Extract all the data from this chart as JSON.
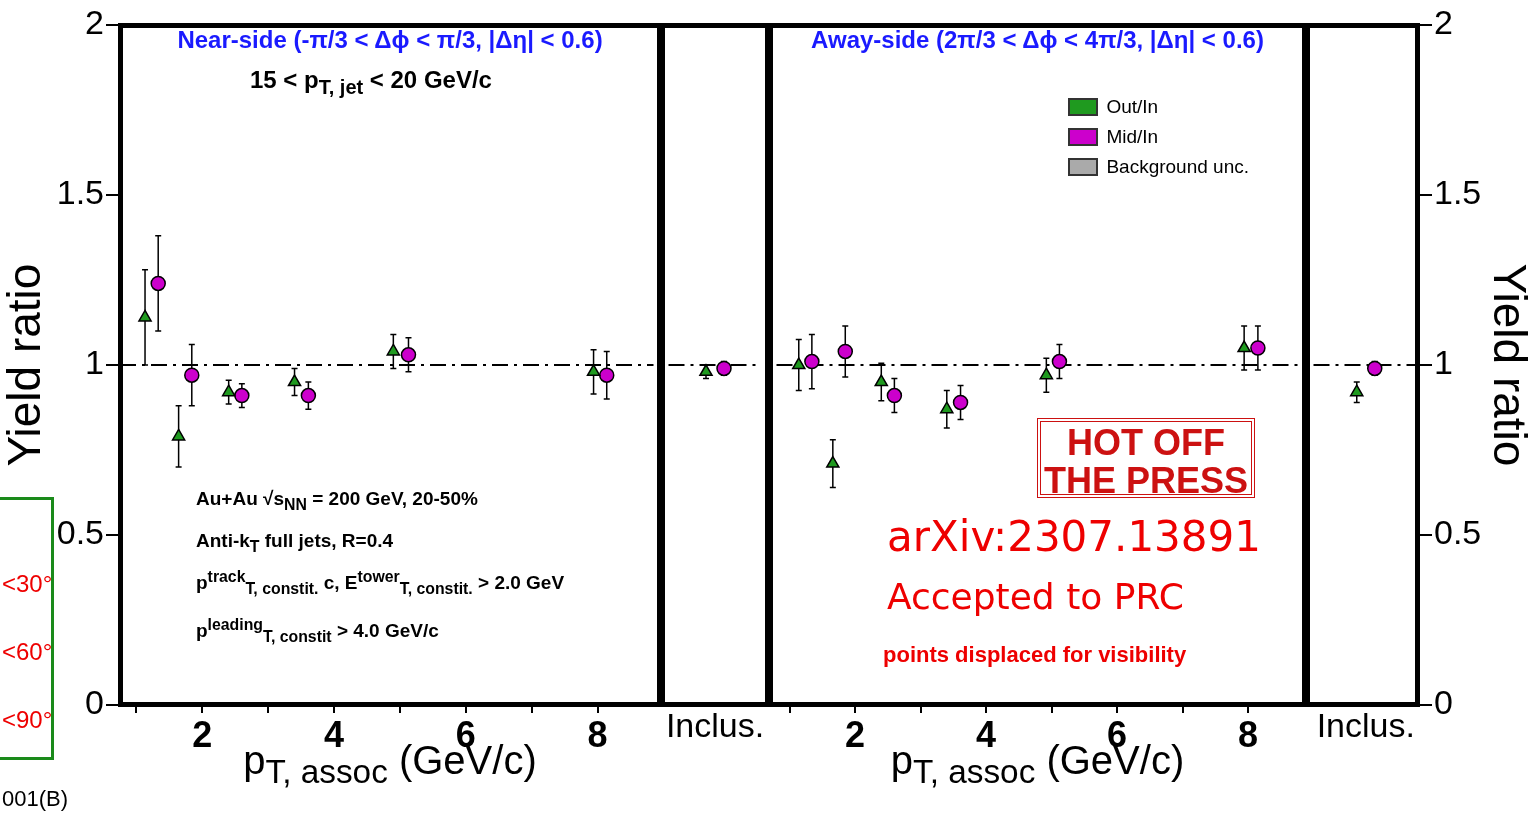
{
  "chart_data": [
    {
      "type": "scatter",
      "xlabel": "p$_{T, assoc}$ (GeV/c)",
      "ylabel": "Yield ratio",
      "xlim": [
        0.75,
        8.85
      ],
      "xticks": [
        {
          "value": 1,
          "label": null
        },
        2,
        {
          "value": 3,
          "label": null
        },
        4,
        {
          "value": 5,
          "label": null
        },
        6,
        {
          "value": 7,
          "label": null
        },
        8
      ],
      "ylim": [
        0,
        2
      ],
      "yticks": [
        0,
        0.5,
        1,
        1.5,
        2
      ],
      "ref_lines": [
        {
          "axis": "y",
          "value": 1,
          "line_style": "dashed"
        }
      ],
      "annotations": [
        "Near-side (-π/3 < Δϕ < π/3, |Δη| < 0.6)",
        "15 < p$_{T, jet}$ < 20 GeV/c",
        "Au+Au √s$_{NN}$ = 200 GeV, 20-50%",
        "Anti-k$_{T}$ full jets, R=0.4",
        "p$^{track}$$_{T, constit.}$ c, E$^{tower}$$_{T, constit.}$ > 2.0 GeV",
        "p$^{leading}$$_{T, constit}$ > 4.0 GeV/c",
        "<30°",
        "<60°",
        "<90°",
        "001(B)"
      ],
      "series": [
        {
          "color": "#1f9a1f",
          "marker": "triangle",
          "x": [
            1.13,
            1.64,
            2.4,
            3.4,
            4.9,
            7.94
          ],
          "values": [
            1.14,
            0.79,
            0.92,
            0.95,
            1.04,
            0.98
          ],
          "errors": [
            0.14,
            0.09,
            0.035,
            0.04,
            0.05,
            0.065
          ]
        },
        {
          "color": "#cc00cc",
          "marker": "circle",
          "x": [
            1.33,
            1.84,
            2.6,
            3.61,
            5.13,
            8.14
          ],
          "values": [
            1.24,
            0.97,
            0.91,
            0.91,
            1.03,
            0.97
          ],
          "errors": [
            0.14,
            0.09,
            0.035,
            0.04,
            0.05,
            0.07
          ]
        }
      ]
    },
    {
      "type": "scatter",
      "categories": [
        "Inclus."
      ],
      "ylim": [
        0,
        2
      ],
      "yticks": [
        0,
        0.5,
        1,
        1.5,
        2
      ],
      "tick_labels": "x",
      "ref_lines": [
        {
          "axis": "y",
          "value": 1,
          "line_style": "dashed"
        }
      ],
      "series": [
        {
          "color": "#1f9a1f",
          "marker": "triangle",
          "values": [
            0.98
          ],
          "errors": [
            0.02
          ]
        },
        {
          "color": "#cc00cc",
          "marker": "circle",
          "values": [
            0.99
          ],
          "errors": [
            0.02
          ]
        }
      ]
    },
    {
      "type": "scatter",
      "xlabel": "p$_{T, assoc}$ (GeV/c)",
      "xlim": [
        0.8,
        8.77
      ],
      "xticks": [
        {
          "value": 1,
          "label": null
        },
        2,
        {
          "value": 3,
          "label": null
        },
        4,
        {
          "value": 5,
          "label": null
        },
        6,
        {
          "value": 7,
          "label": null
        },
        8
      ],
      "ylim": [
        0,
        2
      ],
      "yticks": [
        0,
        0.5,
        1,
        1.5,
        2
      ],
      "tick_labels": "x",
      "legend": "top right",
      "ref_lines": [
        {
          "axis": "y",
          "value": 1,
          "line_style": "dashed"
        }
      ],
      "annotations": [
        "Away-side (2π/3 < Δϕ < 4π/3, |Δη| < 0.6)",
        "HOT OFF THE PRESS",
        "arXiv:2307.13891",
        "Accepted to PRC",
        "points displaced for visibility",
        "Background unc."
      ],
      "series": [
        {
          "name": "Out/In",
          "color": "#1f9a1f",
          "marker": "triangle",
          "x": [
            1.14,
            1.66,
            2.4,
            3.4,
            4.92,
            7.94
          ],
          "values": [
            1.0,
            0.71,
            0.95,
            0.87,
            0.97,
            1.05
          ],
          "errors": [
            0.075,
            0.07,
            0.055,
            0.055,
            0.05,
            0.065
          ]
        },
        {
          "name": "Mid/In",
          "color": "#cc00cc",
          "marker": "circle",
          "x": [
            1.34,
            1.85,
            2.6,
            3.61,
            5.12,
            8.15
          ],
          "values": [
            1.01,
            1.04,
            0.91,
            0.89,
            1.01,
            1.05
          ],
          "errors": [
            0.08,
            0.075,
            0.05,
            0.05,
            0.05,
            0.065
          ]
        }
      ]
    },
    {
      "type": "scatter",
      "categories": [
        "Inclus."
      ],
      "ylabel": "Yield ratio",
      "ylim": [
        0,
        2
      ],
      "yticks": [
        0,
        0.5,
        1,
        1.5,
        2
      ],
      "ref_lines": [
        {
          "axis": "y",
          "value": 1,
          "line_style": "dashed"
        }
      ],
      "series": [
        {
          "color": "#1f9a1f",
          "marker": "triangle",
          "values": [
            0.92
          ],
          "errors": [
            0.03
          ]
        },
        {
          "color": "#cc00cc",
          "marker": "circle",
          "values": [
            0.99
          ],
          "errors": [
            0.02
          ]
        }
      ]
    }
  ]
}
